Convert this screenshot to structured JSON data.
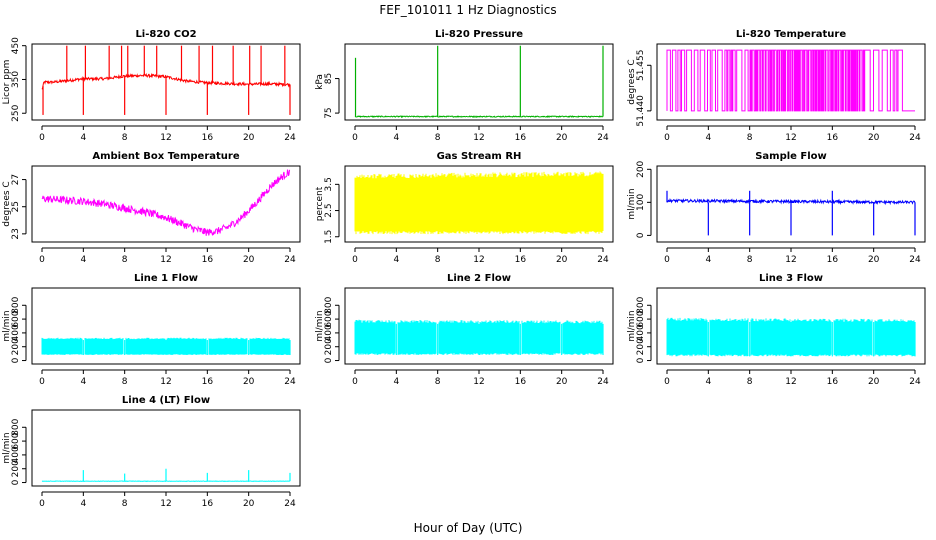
{
  "figure": {
    "title": "FEF_101011  1 Hz Diagnostics",
    "xlabel": "Hour of Day (UTC)"
  },
  "chart_data": [
    {
      "type": "line",
      "title": "Li-820 CO2",
      "ylabel": "Licor ppm",
      "color": "#ff0000",
      "xlim": [
        0,
        24
      ],
      "ylim": [
        230,
        455
      ],
      "yticks": [
        250,
        350,
        450
      ],
      "x_ticks": [
        0,
        4,
        8,
        12,
        16,
        20,
        24
      ],
      "series": [
        {
          "x": [
            0,
            0.2,
            1,
            2,
            4,
            6,
            8,
            10,
            12,
            14,
            16,
            18,
            20,
            22,
            24
          ],
          "y": [
            320,
            342,
            342,
            345,
            352,
            352,
            360,
            362,
            358,
            345,
            340,
            338,
            336,
            337,
            335
          ],
          "spikes_up": [
            2.4,
            4.2,
            6.5,
            7.7,
            8.3,
            9.9,
            11.1,
            13.5,
            15.2,
            16.5,
            18.5,
            20.1,
            21.2,
            23.5
          ],
          "spikes_down": [
            0.1,
            4.0,
            8.0,
            12.0,
            16.0,
            20.0,
            24.0
          ]
        }
      ]
    },
    {
      "type": "line",
      "title": "Li-820 Pressure",
      "ylabel": "kPa",
      "color": "#00b000",
      "xlim": [
        0,
        24
      ],
      "ylim": [
        73,
        95
      ],
      "yticks": [
        75,
        85
      ],
      "x_ticks": [
        0,
        4,
        8,
        12,
        16,
        20,
        24
      ],
      "series": [
        {
          "x": [
            0,
            24
          ],
          "y": [
            74,
            74
          ],
          "spikes_up": [
            0.05,
            8.0,
            16.0,
            24.0
          ]
        }
      ]
    },
    {
      "type": "line",
      "title": "Li-820 Temperature",
      "ylabel": "degrees C",
      "color": "#ff00ff",
      "xlim": [
        0,
        24
      ],
      "ylim": [
        51.437,
        51.462
      ],
      "yticks": [
        51.44,
        51.455
      ],
      "ytick_labels": [
        "51.440",
        "51.455"
      ],
      "x_ticks": [
        0,
        4,
        8,
        12,
        16,
        20,
        24
      ],
      "series": [
        {
          "levels": [
            51.44,
            51.46
          ],
          "switching_range": [
            0,
            22.5
          ],
          "low_after": 22.5
        }
      ]
    },
    {
      "type": "line",
      "title": "Ambient Box Temperature",
      "ylabel": "degrees C",
      "color": "#ff00ff",
      "xlim": [
        0,
        24
      ],
      "ylim": [
        22.4,
        28.0
      ],
      "yticks": [
        23,
        25,
        27
      ],
      "x_ticks": [
        0,
        4,
        8,
        12,
        16,
        20,
        24
      ],
      "series": [
        {
          "x": [
            0,
            2,
            4,
            6,
            8,
            10,
            12,
            13,
            14,
            15,
            16,
            17,
            18,
            19,
            20,
            21,
            22,
            23,
            24
          ],
          "y": [
            25.6,
            25.5,
            25.4,
            25.2,
            24.9,
            24.6,
            24.2,
            23.9,
            23.6,
            23.3,
            23.1,
            23.2,
            23.5,
            24.0,
            24.7,
            25.5,
            26.4,
            27.1,
            27.6
          ]
        }
      ]
    },
    {
      "type": "line",
      "title": "Gas Stream RH",
      "ylabel": "percent",
      "color": "#ffff00",
      "xlim": [
        0,
        24
      ],
      "ylim": [
        1.3,
        4.2
      ],
      "yticks": [
        1.5,
        2.5,
        3.5
      ],
      "x_ticks": [
        0,
        4,
        8,
        12,
        16,
        20,
        24
      ],
      "series": [
        {
          "x": [
            0,
            24
          ],
          "y_max": [
            3.9,
            4.0
          ],
          "y_min": [
            1.6,
            1.6
          ]
        }
      ]
    },
    {
      "type": "line",
      "title": "Sample Flow",
      "ylabel": "ml/min",
      "color": "#0000ff",
      "xlim": [
        0,
        24
      ],
      "ylim": [
        -20,
        210
      ],
      "yticks": [
        0,
        100,
        200
      ],
      "x_ticks": [
        0,
        4,
        8,
        12,
        16,
        20,
        24
      ],
      "series": [
        {
          "x": [
            0,
            24
          ],
          "y": [
            105,
            100
          ],
          "spikes_down": [
            4,
            8,
            12,
            16,
            20,
            24
          ],
          "spikes_up": [
            0,
            8,
            16
          ]
        }
      ]
    },
    {
      "type": "line",
      "title": "Line 1 Flow",
      "ylabel": "ml/min",
      "color": "#00ffff",
      "xlim": [
        0,
        24
      ],
      "ylim": [
        -50,
        1050
      ],
      "yticks": [
        0,
        200,
        400,
        600,
        800
      ],
      "x_ticks": [
        0,
        4,
        8,
        12,
        16,
        20,
        24
      ],
      "series": [
        {
          "x": [
            0,
            24
          ],
          "y_max": [
            330,
            330
          ],
          "y_min": [
            80,
            80
          ],
          "gaps": [
            4,
            8,
            12,
            16,
            20,
            24
          ]
        }
      ]
    },
    {
      "type": "line",
      "title": "Line 2 Flow",
      "ylabel": "ml/min",
      "color": "#00ffff",
      "xlim": [
        0,
        24
      ],
      "ylim": [
        -50,
        1050
      ],
      "yticks": [
        0,
        200,
        400,
        600,
        800
      ],
      "x_ticks": [
        0,
        4,
        8,
        12,
        16,
        20,
        24
      ],
      "series": [
        {
          "x": [
            0,
            24
          ],
          "y_max": [
            590,
            580
          ],
          "y_min": [
            80,
            80
          ],
          "gaps": [
            4,
            8,
            12,
            16,
            20,
            24
          ]
        }
      ]
    },
    {
      "type": "line",
      "title": "Line 3 Flow",
      "ylabel": "ml/min",
      "color": "#00ffff",
      "xlim": [
        0,
        24
      ],
      "ylim": [
        -50,
        1050
      ],
      "yticks": [
        0,
        200,
        400,
        600,
        800
      ],
      "x_ticks": [
        0,
        4,
        8,
        12,
        16,
        20,
        24
      ],
      "series": [
        {
          "x": [
            0,
            24
          ],
          "y_max": [
            620,
            600
          ],
          "y_min": [
            60,
            60
          ],
          "gaps": [
            4,
            8,
            12,
            16,
            20,
            24
          ]
        }
      ]
    },
    {
      "type": "line",
      "title": "Line 4 (LT) Flow",
      "ylabel": "ml/min",
      "color": "#00ffff",
      "xlim": [
        0,
        24
      ],
      "ylim": [
        -50,
        1050
      ],
      "yticks": [
        0,
        200,
        400,
        600,
        800
      ],
      "x_ticks": [
        0,
        4,
        8,
        12,
        16,
        20,
        24
      ],
      "series": [
        {
          "x": [
            0,
            24
          ],
          "y": [
            20,
            20
          ],
          "spikes_up": [
            4,
            8,
            12,
            16,
            20,
            24
          ],
          "spike_values": [
            180,
            130,
            200,
            140,
            180,
            140
          ]
        }
      ]
    }
  ]
}
